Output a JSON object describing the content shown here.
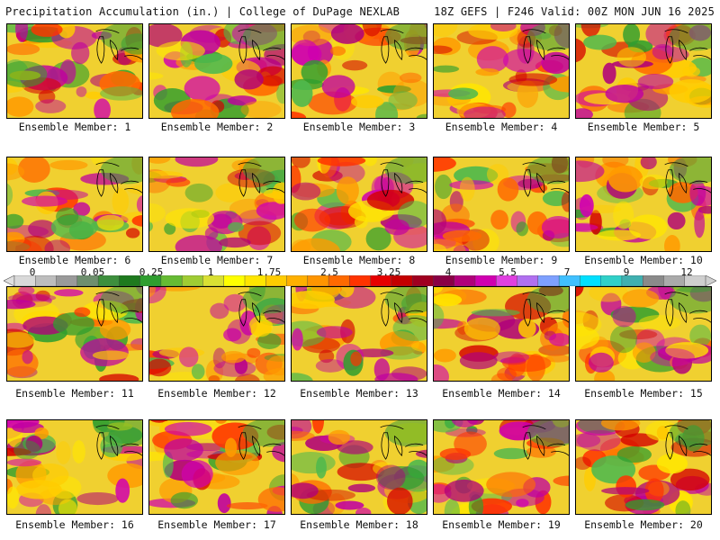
{
  "header": {
    "left_title": "Precipitation Accumulation (in.) | College of DuPage NEXLAB",
    "right_title": "18Z GEFS | F246 Valid: 00Z MON JUN 16 2025"
  },
  "panel_label_prefix": "Ensemble Member: ",
  "members": [
    1,
    2,
    3,
    4,
    5,
    6,
    7,
    8,
    9,
    10,
    11,
    12,
    13,
    14,
    15,
    16,
    17,
    18,
    19,
    20
  ],
  "colorbar": {
    "labels": [
      "0",
      "0.05",
      "0.25",
      "1",
      "1.75",
      "2.5",
      "3.25",
      "4",
      "5.5",
      "7",
      "9",
      "12"
    ],
    "colors": [
      "#d9d9d9",
      "#bdbdbd",
      "#9a9a9a",
      "#6e8f6e",
      "#3d8f3d",
      "#1e7a1e",
      "#2f9e2f",
      "#66bb33",
      "#9fcc33",
      "#d9e033",
      "#ffff00",
      "#ffe600",
      "#ffcc00",
      "#ffb000",
      "#ff9500",
      "#ff6a00",
      "#ff3300",
      "#e60000",
      "#c40000",
      "#a00020",
      "#8a0045",
      "#b0007a",
      "#d000b0",
      "#e040e0",
      "#b070f0",
      "#7ea0ff",
      "#40c0ff",
      "#00e0ff",
      "#30d0c8",
      "#40b0b0",
      "#8a8a8a",
      "#aaaaaa",
      "#cfcfcf"
    ],
    "accent": "#ff0000"
  }
}
